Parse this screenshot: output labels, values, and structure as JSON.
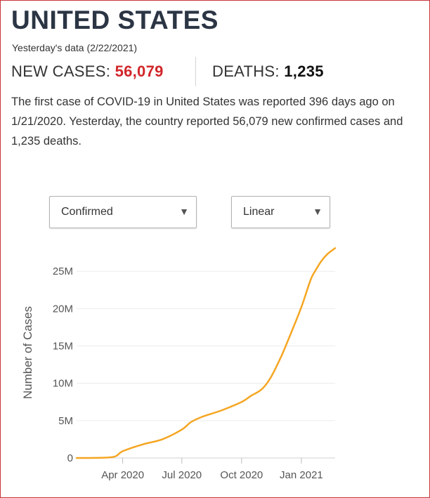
{
  "header": {
    "title": "UNITED STATES",
    "subtitle": "Yesterday's data (2/22/2021)"
  },
  "stats": {
    "cases_label": "NEW CASES:",
    "cases_value": "56,079",
    "deaths_label": "DEATHS:",
    "deaths_value": "1,235"
  },
  "summary": {
    "part1": "The first case of ",
    "term": "COVID-19",
    "part2": " in ",
    "country": "United States",
    "part3": " was reported 396 days ago on 1/21/2020. Yesterday, the country reported 56,079 new confirmed cases and 1,235 deaths."
  },
  "controls": {
    "metric_selected": "Confirmed",
    "scale_selected": "Linear",
    "dropdown_icon": "chevron-down-icon"
  },
  "colors": {
    "accent_red": "#d1262b",
    "line": "#f5a623"
  },
  "chart_data": {
    "type": "line",
    "ylabel": "Number of Cases",
    "xlabel": "",
    "title": "",
    "yticks": [
      {
        "value": 0,
        "label": "0"
      },
      {
        "value": 5000000,
        "label": "5M"
      },
      {
        "value": 10000000,
        "label": "10M"
      },
      {
        "value": 15000000,
        "label": "15M"
      },
      {
        "value": 20000000,
        "label": "20M"
      },
      {
        "value": 25000000,
        "label": "25M"
      }
    ],
    "xticks": [
      {
        "date": "2020-04-01",
        "label": "Apr 2020"
      },
      {
        "date": "2020-07-01",
        "label": "Jul 2020"
      },
      {
        "date": "2020-10-01",
        "label": "Oct 2020"
      },
      {
        "date": "2021-01-01",
        "label": "Jan 2021"
      }
    ],
    "xlim": [
      "2020-01-21",
      "2021-02-22"
    ],
    "ylim": [
      0,
      28500000
    ],
    "grid": true,
    "series": [
      {
        "values": [
          {
            "x": "2020-01-21",
            "y": 0
          },
          {
            "x": "2020-03-15",
            "y": 100000
          },
          {
            "x": "2020-04-01",
            "y": 900000
          },
          {
            "x": "2020-05-01",
            "y": 1800000
          },
          {
            "x": "2020-06-01",
            "y": 2500000
          },
          {
            "x": "2020-07-01",
            "y": 3800000
          },
          {
            "x": "2020-07-15",
            "y": 4800000
          },
          {
            "x": "2020-08-01",
            "y": 5500000
          },
          {
            "x": "2020-09-01",
            "y": 6400000
          },
          {
            "x": "2020-10-01",
            "y": 7500000
          },
          {
            "x": "2020-10-15",
            "y": 8300000
          },
          {
            "x": "2020-11-01",
            "y": 9200000
          },
          {
            "x": "2020-11-15",
            "y": 10800000
          },
          {
            "x": "2020-12-01",
            "y": 13600000
          },
          {
            "x": "2020-12-15",
            "y": 16500000
          },
          {
            "x": "2021-01-01",
            "y": 20200000
          },
          {
            "x": "2021-01-15",
            "y": 23800000
          },
          {
            "x": "2021-01-22",
            "y": 25000000
          },
          {
            "x": "2021-02-01",
            "y": 26400000
          },
          {
            "x": "2021-02-10",
            "y": 27300000
          },
          {
            "x": "2021-02-22",
            "y": 28100000
          }
        ]
      }
    ]
  }
}
